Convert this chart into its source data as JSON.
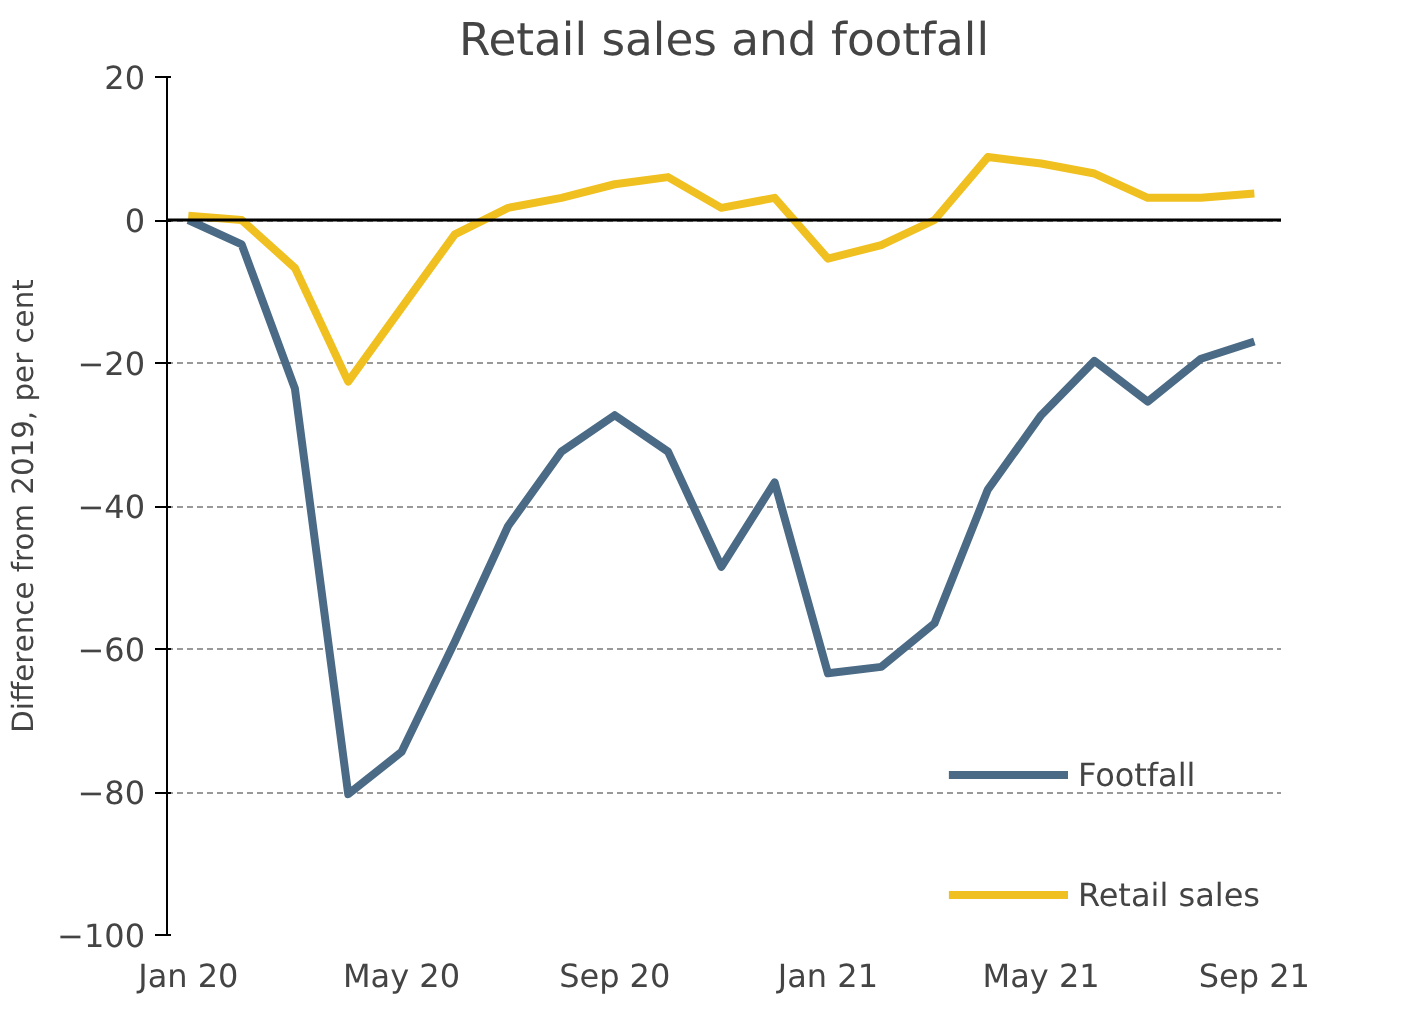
{
  "chart_data": {
    "type": "line",
    "title": "Retail sales and footfall",
    "ylabel": "Difference from 2019, per cent",
    "categories": [
      "Jan 20",
      null,
      null,
      null,
      "May 20",
      null,
      null,
      null,
      "Sep 20",
      null,
      null,
      null,
      "Jan 21",
      null,
      null,
      null,
      "May 21",
      null,
      null,
      null,
      "Sep 21"
    ],
    "series": [
      {
        "name": "Footfall",
        "color": "#4a6a85",
        "values": [
          0,
          -3.4,
          -23.6,
          -80.3,
          -74.4,
          -59,
          -42.8,
          -32.4,
          -27.3,
          -32.4,
          -48.5,
          -36.7,
          -63.4,
          -62.5,
          -56.4,
          -37.7,
          -27.3,
          -19.7,
          -25.4,
          -19.4,
          -17
        ]
      },
      {
        "name": "Retail sales",
        "color": "#f0c020",
        "values": [
          0.6,
          0,
          -6.7,
          -22.6,
          -12.3,
          -2,
          1.7,
          3.1,
          5,
          6,
          1.7,
          3.1,
          -5.4,
          -3.5,
          0,
          8.8,
          7.9,
          6.5,
          3.1,
          3.1,
          3.7
        ]
      }
    ],
    "ylim": [
      -100,
      20
    ],
    "yticks": [
      -100,
      -80,
      -60,
      -40,
      -20,
      0,
      20
    ],
    "grid": "y",
    "legend": "bottom right"
  }
}
